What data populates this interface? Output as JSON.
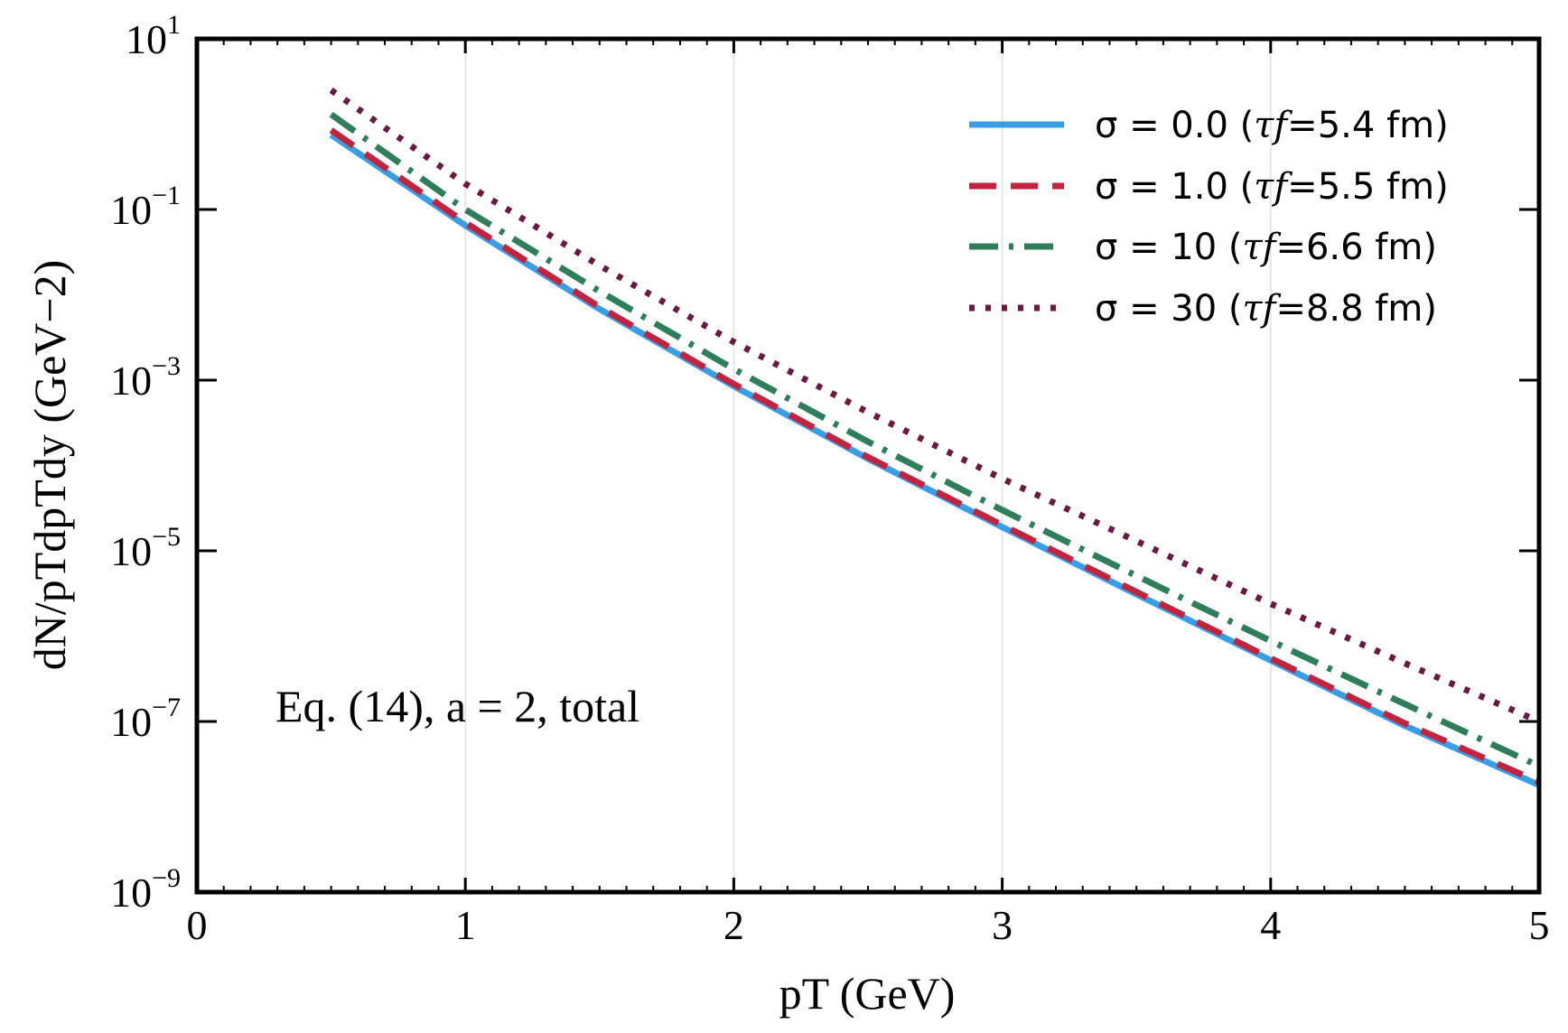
{
  "chart_data": {
    "type": "line",
    "xlabel": "pT (GeV)",
    "ylabel": "dN/pTdpTdy (GeV−2)",
    "xlim": [
      0,
      5
    ],
    "ylim": [
      1e-09,
      10
    ],
    "yscale": "log",
    "grid": "vertical at major x ticks",
    "legend_position": "top-right",
    "x_ticks": [
      "0",
      "1",
      "2",
      "3",
      "4",
      "5"
    ],
    "y_ticks": [
      {
        "base": "10",
        "exp": "1"
      },
      {
        "base": "10",
        "exp": "−1"
      },
      {
        "base": "10",
        "exp": "−3"
      },
      {
        "base": "10",
        "exp": "−5"
      },
      {
        "base": "10",
        "exp": "−7"
      },
      {
        "base": "10",
        "exp": "−9"
      }
    ],
    "annotation": "Eq. (14), a = 2, total",
    "x": [
      0.5,
      1.0,
      1.5,
      2.0,
      2.5,
      3.0,
      3.5,
      4.0,
      4.5,
      5.0
    ],
    "series": [
      {
        "name": "σ = 0.0 (τf=5.4 fm)",
        "legend_sigma": "σ = 0.0 (",
        "legend_tau": "τf",
        "legend_rest": "=5.4 fm)",
        "color": "#3a9ee4",
        "style": "solid",
        "values": [
          0.75,
          0.065,
          0.0068,
          0.00085,
          0.00012,
          1.9e-05,
          3.1e-06,
          5.2e-07,
          8.9e-08,
          1.8e-08
        ]
      },
      {
        "name": "σ = 1.0 (τf=5.5 fm)",
        "legend_sigma": "σ = 1.0 (",
        "legend_tau": "τf",
        "legend_rest": "=5.5 fm)",
        "color": "#c2233f",
        "style": "dashed",
        "values": [
          0.85,
          0.07,
          0.0072,
          0.0009,
          0.000125,
          2e-05,
          3.3e-06,
          5.5e-07,
          9.5e-08,
          1.95e-08
        ]
      },
      {
        "name": "σ = 10 (τf=6.6 fm)",
        "legend_sigma": "σ = 10 (",
        "legend_tau": "τf",
        "legend_rest": "=6.6 fm)",
        "color": "#2e7d5b",
        "style": "dashdot",
        "values": [
          1.3,
          0.1,
          0.011,
          0.00135,
          0.00019,
          3e-05,
          5.1e-06,
          8.8e-07,
          1.6e-07,
          3e-08
        ]
      },
      {
        "name": "σ = 30 (τf=8.8 fm)",
        "legend_sigma": "σ = 30 (",
        "legend_tau": "τf",
        "legend_rest": "=8.8 fm)",
        "color": "#6a1a3f",
        "style": "dotted",
        "values": [
          2.5,
          0.2,
          0.022,
          0.0028,
          0.00042,
          7e-05,
          1.3e-05,
          2.4e-06,
          4.8e-07,
          1e-07
        ]
      }
    ]
  }
}
